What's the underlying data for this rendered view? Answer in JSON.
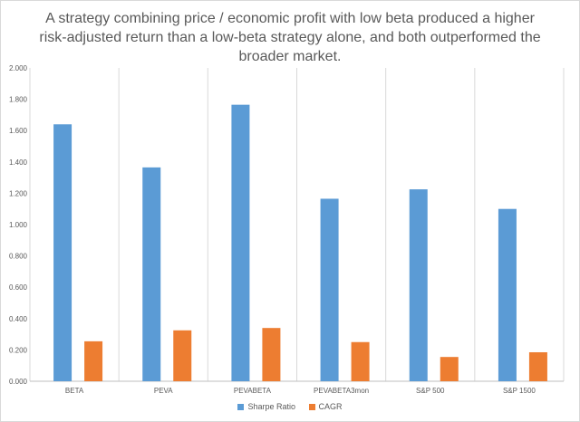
{
  "chart_data": {
    "type": "bar",
    "title": "A strategy combining price / economic profit with low beta produced a higher risk-adjusted return than a low-beta strategy alone, and both outperformed the broader market.",
    "categories": [
      "BETA",
      "PEVA",
      "PEVABETA",
      "PEVABETA3mon",
      "S&P 500",
      "S&P 1500"
    ],
    "series": [
      {
        "name": "Sharpe Ratio",
        "color": "#5B9BD5",
        "values": [
          1.64,
          1.365,
          1.765,
          1.165,
          1.225,
          1.1
        ]
      },
      {
        "name": "CAGR",
        "color": "#ED7D31",
        "values": [
          0.255,
          0.325,
          0.34,
          0.25,
          0.155,
          0.185
        ]
      }
    ],
    "ylim": [
      0,
      2
    ],
    "yticks": [
      "0.000",
      "0.200",
      "0.400",
      "0.600",
      "0.800",
      "1.000",
      "1.200",
      "1.400",
      "1.600",
      "1.800",
      "2.000"
    ],
    "xlabel": "",
    "ylabel": "",
    "grid": "vertical",
    "legend": "bottom"
  }
}
